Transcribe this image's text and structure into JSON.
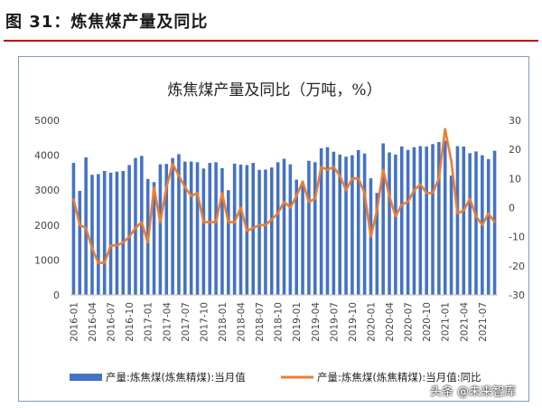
{
  "figure": {
    "title": "图 31：炼焦煤产量及同比",
    "rule_color": "#c00000"
  },
  "watermark": "头条 @未来智库",
  "chart_data": {
    "type": "bar",
    "title": "炼焦煤产量及同比（万吨，%）",
    "x": [
      "2016-01",
      "2016-02",
      "2016-03",
      "2016-04",
      "2016-05",
      "2016-06",
      "2016-07",
      "2016-08",
      "2016-09",
      "2016-10",
      "2016-11",
      "2016-12",
      "2017-01",
      "2017-02",
      "2017-03",
      "2017-04",
      "2017-05",
      "2017-06",
      "2017-07",
      "2017-08",
      "2017-09",
      "2017-10",
      "2017-11",
      "2017-12",
      "2018-01",
      "2018-02",
      "2018-03",
      "2018-04",
      "2018-05",
      "2018-06",
      "2018-07",
      "2018-08",
      "2018-09",
      "2018-10",
      "2018-11",
      "2018-12",
      "2019-01",
      "2019-02",
      "2019-03",
      "2019-04",
      "2019-05",
      "2019-06",
      "2019-07",
      "2019-08",
      "2019-09",
      "2019-10",
      "2019-11",
      "2019-12",
      "2020-01",
      "2020-02",
      "2020-03",
      "2020-04",
      "2020-05",
      "2020-06",
      "2020-07",
      "2020-08",
      "2020-09",
      "2020-10",
      "2020-11",
      "2020-12",
      "2021-01",
      "2021-02",
      "2021-03",
      "2021-04",
      "2021-05",
      "2021-06",
      "2021-07",
      "2021-08",
      "2021-09"
    ],
    "tick_labels": [
      "2016-01",
      "2016-04",
      "2016-07",
      "2016-10",
      "2017-01",
      "2017-04",
      "2017-07",
      "2017-10",
      "2018-01",
      "2018-04",
      "2018-07",
      "2018-10",
      "2019-01",
      "2019-04",
      "2019-07",
      "2019-10",
      "2020-01",
      "2020-04",
      "2020-07",
      "2020-10",
      "2021-01",
      "2021-04",
      "2021-07"
    ],
    "series": [
      {
        "name": "产量:炼焦煤(炼焦精煤):当月值",
        "kind": "bar",
        "axis": "left",
        "color": "#4472c4",
        "values": [
          3780,
          2980,
          3940,
          3440,
          3460,
          3550,
          3500,
          3530,
          3550,
          3720,
          3920,
          3980,
          3320,
          3230,
          3740,
          3750,
          3920,
          4030,
          3820,
          3820,
          3800,
          3620,
          3780,
          3800,
          3630,
          3000,
          3760,
          3730,
          3720,
          3780,
          3580,
          3590,
          3650,
          3800,
          3900,
          3740,
          3300,
          3140,
          3840,
          3800,
          4200,
          4230,
          4100,
          4020,
          3960,
          4000,
          4150,
          4050,
          3340,
          2920,
          4340,
          4080,
          4020,
          4250,
          4150,
          4230,
          4260,
          4250,
          4320,
          4380,
          4420,
          3420,
          4260,
          4250,
          4060,
          4110,
          4000,
          3890,
          4130
        ]
      },
      {
        "name": "产量:炼焦煤(炼焦精煤):当月值:同比",
        "kind": "line",
        "axis": "right",
        "color": "#ed7d31",
        "values": [
          3,
          -6,
          -7,
          -14,
          -19,
          -19,
          -13,
          -13,
          -12,
          -10,
          -7,
          -5,
          -12,
          7,
          -5,
          7,
          15,
          11,
          7,
          4,
          5,
          -5,
          -5,
          -5,
          5,
          -5,
          -5,
          0,
          -8,
          -7,
          -6,
          -6,
          -4,
          -2,
          2,
          0,
          4,
          9,
          2,
          3,
          14,
          13,
          14,
          11,
          6,
          10,
          10,
          5,
          -10,
          -1,
          13,
          4,
          -3,
          1,
          2,
          6,
          8,
          5,
          5,
          10,
          27,
          16,
          -2,
          -1,
          3,
          -3,
          -6,
          -2,
          -5
        ]
      }
    ],
    "y_left": {
      "min": 0,
      "max": 5000,
      "step": 1000,
      "ticks": [
        "0",
        "1000",
        "2000",
        "3000",
        "4000",
        "5000"
      ]
    },
    "y_right": {
      "min": -30,
      "max": 30,
      "step": 10,
      "ticks": [
        "-30",
        "-20",
        "-10",
        "0",
        "10",
        "20",
        "30"
      ]
    },
    "legend_position": "bottom",
    "grid": false
  }
}
